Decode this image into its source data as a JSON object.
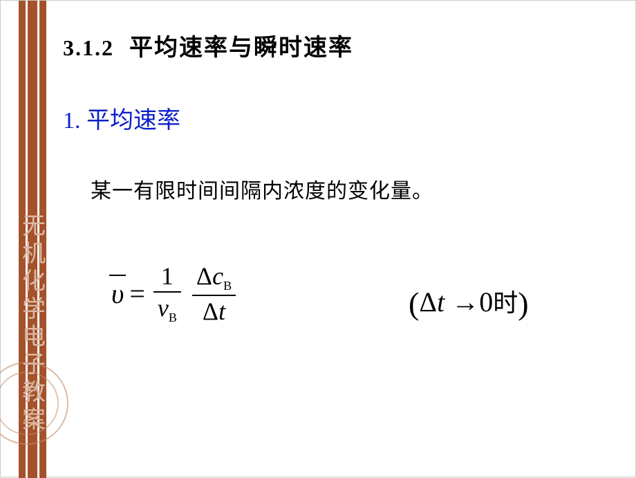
{
  "colors": {
    "strip": "#a4522b",
    "strip_text": "#d9b9a5",
    "heading": "#000000",
    "sub1": "#0a1ec8",
    "body": "#000000",
    "bg": "#ffffff"
  },
  "sidebar_vertical_label_chars": [
    "无",
    "机",
    "化",
    "学",
    "电",
    "子",
    "教",
    "案"
  ],
  "heading": {
    "number": "3.1.2",
    "title": "平均速率与瞬时速率"
  },
  "subsection": {
    "number": "1.",
    "title": "平均速率"
  },
  "body_text": "某一有限时间间隔内浓度的变化量。",
  "formula": {
    "lhs_symbol": "υ",
    "lhs_has_overbar": true,
    "equals": "=",
    "frac1_top": "1",
    "frac1_bot_symbol": "ν",
    "frac1_bot_sub": "B",
    "frac2_top_prefix": "Δ",
    "frac2_top_symbol": "c",
    "frac2_top_sub": "B",
    "frac2_bot_prefix": "Δ",
    "frac2_bot_symbol": "t",
    "limit_prefix": "Δ",
    "limit_symbol": "t",
    "limit_arrow": "→",
    "limit_value": "0",
    "limit_suffix_cjk": "时"
  },
  "typography": {
    "heading_fontsize_pt": 26,
    "sub_fontsize_pt": 26,
    "body_fontsize_pt": 22,
    "formula_fontsize_pt": 30
  }
}
